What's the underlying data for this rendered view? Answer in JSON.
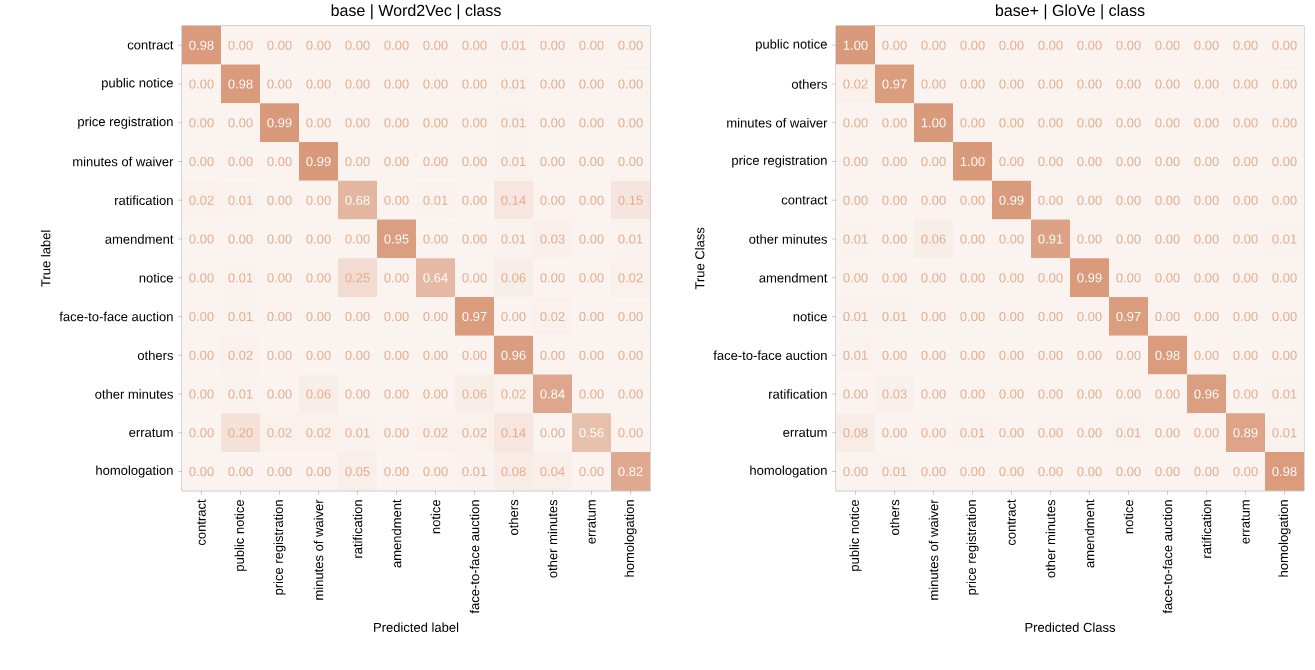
{
  "chart_data": [
    {
      "type": "heatmap",
      "title": "base | Word2Vec | class",
      "xlabel": "Predicted label",
      "ylabel": "True label",
      "color": "#d99a7b",
      "categories": [
        "contract",
        "public notice",
        "price registration",
        "minutes of waiver",
        "ratification",
        "amendment",
        "notice",
        "face-to-face auction",
        "others",
        "other minutes",
        "erratum",
        "homologation"
      ],
      "y_categories": [
        "contract",
        "public notice",
        "price registration",
        "minutes of waiver",
        "ratification",
        "amendment",
        "notice",
        "face-to-face auction",
        "others",
        "other minutes",
        "erratum",
        "homologation"
      ],
      "cells": [
        [
          0.98,
          0,
          0,
          0,
          0,
          0,
          0,
          0,
          0.01,
          0,
          0,
          0
        ],
        [
          0,
          0.98,
          0,
          0,
          0,
          0,
          0,
          0,
          0.01,
          0,
          0,
          0
        ],
        [
          0,
          0,
          0.99,
          0,
          0,
          0,
          0,
          0,
          0.01,
          0,
          0,
          0
        ],
        [
          0,
          0,
          0,
          0.99,
          0,
          0,
          0,
          0,
          0.01,
          0,
          0,
          0
        ],
        [
          0.02,
          0.01,
          0,
          0,
          0.68,
          0,
          0.01,
          0,
          0.14,
          0,
          0,
          0.15
        ],
        [
          0,
          0,
          0,
          0,
          0,
          0.95,
          0,
          0,
          0.01,
          0.03,
          0,
          0.01
        ],
        [
          0,
          0.01,
          0,
          0,
          0.25,
          0,
          0.64,
          0,
          0.06,
          0,
          0,
          0.02
        ],
        [
          0,
          0.01,
          0,
          0,
          0,
          0,
          0,
          0.97,
          0,
          0.02,
          0,
          0
        ],
        [
          0,
          0.02,
          0,
          0,
          0,
          0,
          0,
          0,
          0.96,
          0,
          0,
          0
        ],
        [
          0,
          0.01,
          0,
          0.06,
          0,
          0,
          0,
          0.06,
          0.02,
          0.84,
          0,
          0
        ],
        [
          0,
          0.2,
          0.02,
          0.02,
          0.01,
          0,
          0.02,
          0.02,
          0.14,
          0,
          0.56,
          0
        ],
        [
          0,
          0,
          0,
          0,
          0.05,
          0,
          0,
          0.01,
          0.08,
          0.04,
          0,
          0.82
        ]
      ],
      "cell_labels": [
        [
          "0.98",
          "0.00",
          "0.00",
          "0.00",
          "0.00",
          "0.00",
          "0.00",
          "0.00",
          "0.01",
          "0.00",
          "0.00",
          "0.00"
        ],
        [
          "0.00",
          "0.98",
          "0.00",
          "0.00",
          "0.00",
          "0.00",
          "0.00",
          "0.00",
          "0.01",
          "0.00",
          "0.00",
          "0.00"
        ],
        [
          "0.00",
          "0.00",
          "0.99",
          "0.00",
          "0.00",
          "0.00",
          "0.00",
          "0.00",
          "0.01",
          "0.00",
          "0.00",
          "0.00"
        ],
        [
          "0.00",
          "0.00",
          "0.00",
          "0.99",
          "0.00",
          "0.00",
          "0.00",
          "0.00",
          "0.01",
          "0.00",
          "0.00",
          "0.00"
        ],
        [
          "0.02",
          "0.01",
          "0.00",
          "0.00",
          "0.68",
          "0.00",
          "0.01",
          "0.00",
          "0.14",
          "0.00",
          "0.00",
          "0.15"
        ],
        [
          "0.00",
          "0.00",
          "0.00",
          "0.00",
          "0.00",
          "0.95",
          "0.00",
          "0.00",
          "0.01",
          "0.03",
          "0.00",
          "0.01"
        ],
        [
          "0.00",
          "0.01",
          "0.00",
          "0.00",
          "0.25",
          "0.00",
          "0.64",
          "0.00",
          "0.06",
          "0.00",
          "0.00",
          "0.02"
        ],
        [
          "0.00",
          "0.01",
          "0.00",
          "0.00",
          "0.00",
          "0.00",
          "0.00",
          "0.97",
          "0.00",
          "0.02",
          "0.00",
          "0.00"
        ],
        [
          "0.00",
          "0.02",
          "0.00",
          "0.00",
          "0.00",
          "0.00",
          "0.00",
          "0.00",
          "0.96",
          "0.00",
          "0.00",
          "0.00"
        ],
        [
          "0.00",
          "0.01",
          "0.00",
          "0.06",
          "0.00",
          "0.00",
          "0.00",
          "0.06",
          "0.02",
          "0.84",
          "0.00",
          "0.00"
        ],
        [
          "0.00",
          "0.20",
          "0.02",
          "0.02",
          "0.01",
          "0.00",
          "0.02",
          "0.02",
          "0.14",
          "0.00",
          "0.56",
          "0.00"
        ],
        [
          "0.00",
          "0.00",
          "0.00",
          "0.00",
          "0.05",
          "0.00",
          "0.00",
          "0.01",
          "0.08",
          "0.04",
          "0.00",
          "0.82"
        ]
      ]
    },
    {
      "type": "heatmap",
      "title": "base+ | GloVe | class",
      "xlabel": "Predicted Class",
      "ylabel": "True Class",
      "color": "#d99a7b",
      "categories": [
        "public notice",
        "others",
        "minutes of waiver",
        "price registration",
        "contract",
        "other minutes",
        "amendment",
        "notice",
        "face-to-face auction",
        "ratification",
        "erratum",
        "homologation"
      ],
      "y_categories": [
        "public notice",
        "others",
        "minutes of waiver",
        "price registration",
        "contract",
        "other minutes",
        "amendment",
        "notice",
        "face-to-face auction",
        "ratification",
        "erratum",
        "homologation"
      ],
      "cells": [
        [
          1.0,
          0,
          0,
          0,
          0,
          0,
          0,
          0,
          0,
          0,
          0,
          0
        ],
        [
          0.02,
          0.97,
          0,
          0,
          0,
          0,
          0,
          0,
          0,
          0,
          0,
          0
        ],
        [
          0,
          0,
          1.0,
          0,
          0,
          0,
          0,
          0,
          0,
          0,
          0,
          0
        ],
        [
          0,
          0,
          0,
          1.0,
          0,
          0,
          0,
          0,
          0,
          0,
          0,
          0
        ],
        [
          0,
          0,
          0,
          0,
          0.99,
          0,
          0,
          0,
          0,
          0,
          0,
          0
        ],
        [
          0.01,
          0,
          0.06,
          0,
          0,
          0.91,
          0,
          0,
          0,
          0,
          0,
          0.01
        ],
        [
          0,
          0,
          0,
          0,
          0,
          0,
          0.99,
          0,
          0,
          0,
          0,
          0
        ],
        [
          0.01,
          0.01,
          0,
          0,
          0,
          0,
          0,
          0.97,
          0,
          0,
          0,
          0
        ],
        [
          0.01,
          0,
          0,
          0,
          0,
          0,
          0,
          0,
          0.98,
          0,
          0,
          0
        ],
        [
          0,
          0.03,
          0,
          0,
          0,
          0,
          0,
          0,
          0,
          0.96,
          0,
          0.01
        ],
        [
          0.08,
          0,
          0,
          0.01,
          0,
          0,
          0,
          0.01,
          0,
          0,
          0.89,
          0.01
        ],
        [
          0,
          0.01,
          0,
          0,
          0,
          0,
          0,
          0,
          0,
          0,
          0,
          0.98
        ]
      ],
      "cell_labels": [
        [
          "1.00",
          "0.00",
          "0.00",
          "0.00",
          "0.00",
          "0.00",
          "0.00",
          "0.00",
          "0.00",
          "0.00",
          "0.00",
          "0.00"
        ],
        [
          "0.02",
          "0.97",
          "0.00",
          "0.00",
          "0.00",
          "0.00",
          "0.00",
          "0.00",
          "0.00",
          "0.00",
          "0.00",
          "0.00"
        ],
        [
          "0.00",
          "0.00",
          "1.00",
          "0.00",
          "0.00",
          "0.00",
          "0.00",
          "0.00",
          "0.00",
          "0.00",
          "0.00",
          "0.00"
        ],
        [
          "0.00",
          "0.00",
          "0.00",
          "1.00",
          "0.00",
          "0.00",
          "0.00",
          "0.00",
          "0.00",
          "0.00",
          "0.00",
          "0.00"
        ],
        [
          "0.00",
          "0.00",
          "0.00",
          "0.00",
          "0.99",
          "0.00",
          "0.00",
          "0.00",
          "0.00",
          "0.00",
          "0.00",
          "0.00"
        ],
        [
          "0.01",
          "0.00",
          "0.06",
          "0.00",
          "0.00",
          "0.91",
          "0.00",
          "0.00",
          "0.00",
          "0.00",
          "0.00",
          "0.01"
        ],
        [
          "0.00",
          "0.00",
          "0.00",
          "0.00",
          "0.00",
          "0.00",
          "0.99",
          "0.00",
          "0.00",
          "0.00",
          "0.00",
          "0.00"
        ],
        [
          "0.01",
          "0.01",
          "0.00",
          "0.00",
          "0.00",
          "0.00",
          "0.00",
          "0.97",
          "0.00",
          "0.00",
          "0.00",
          "0.00"
        ],
        [
          "0.01",
          "0.00",
          "0.00",
          "0.00",
          "0.00",
          "0.00",
          "0.00",
          "0.00",
          "0.98",
          "0.00",
          "0.00",
          "0.00"
        ],
        [
          "0.00",
          "0.03",
          "0.00",
          "0.00",
          "0.00",
          "0.00",
          "0.00",
          "0.00",
          "0.00",
          "0.96",
          "0.00",
          "0.01"
        ],
        [
          "0.08",
          "0.00",
          "0.00",
          "0.01",
          "0.00",
          "0.00",
          "0.00",
          "0.01",
          "0.00",
          "0.00",
          "0.89",
          "0.01"
        ],
        [
          "0.00",
          "0.01",
          "0.00",
          "0.00",
          "0.00",
          "0.00",
          "0.00",
          "0.00",
          "0.00",
          "0.00",
          "0.00",
          "0.98"
        ]
      ]
    }
  ]
}
